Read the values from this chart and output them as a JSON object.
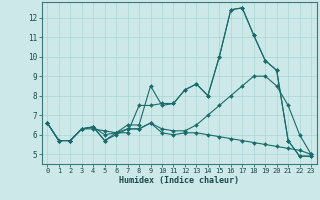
{
  "title": "",
  "xlabel": "Humidex (Indice chaleur)",
  "background_color": "#cce8e8",
  "line_color": "#1a6b6b",
  "grid_color": "#aad4d4",
  "xlim": [
    -0.5,
    23.5
  ],
  "ylim": [
    4.5,
    12.8
  ],
  "yticks": [
    5,
    6,
    7,
    8,
    9,
    10,
    11,
    12
  ],
  "xticks": [
    0,
    1,
    2,
    3,
    4,
    5,
    6,
    7,
    8,
    9,
    10,
    11,
    12,
    13,
    14,
    15,
    16,
    17,
    18,
    19,
    20,
    21,
    22,
    23
  ],
  "series": [
    [
      6.6,
      5.7,
      5.7,
      6.3,
      6.3,
      6.2,
      6.1,
      6.1,
      7.5,
      7.5,
      7.6,
      7.6,
      8.3,
      8.6,
      8.0,
      10.0,
      12.4,
      12.5,
      11.1,
      9.8,
      9.3,
      5.7,
      4.9,
      4.9
    ],
    [
      6.6,
      5.7,
      5.7,
      6.3,
      6.4,
      6.0,
      6.1,
      6.5,
      6.5,
      8.5,
      7.5,
      7.6,
      8.3,
      8.6,
      8.0,
      10.0,
      12.4,
      12.5,
      11.1,
      9.8,
      9.3,
      5.7,
      4.9,
      4.9
    ],
    [
      6.6,
      5.7,
      5.7,
      6.3,
      6.4,
      5.7,
      6.1,
      6.3,
      6.3,
      6.6,
      6.3,
      6.2,
      6.2,
      6.5,
      7.0,
      7.5,
      8.0,
      8.5,
      9.0,
      9.0,
      8.5,
      7.5,
      6.0,
      5.0
    ],
    [
      6.6,
      5.7,
      5.7,
      6.3,
      6.4,
      5.7,
      6.0,
      6.3,
      6.3,
      6.6,
      6.1,
      6.0,
      6.1,
      6.1,
      6.0,
      5.9,
      5.8,
      5.7,
      5.6,
      5.5,
      5.4,
      5.3,
      5.2,
      5.0
    ]
  ]
}
